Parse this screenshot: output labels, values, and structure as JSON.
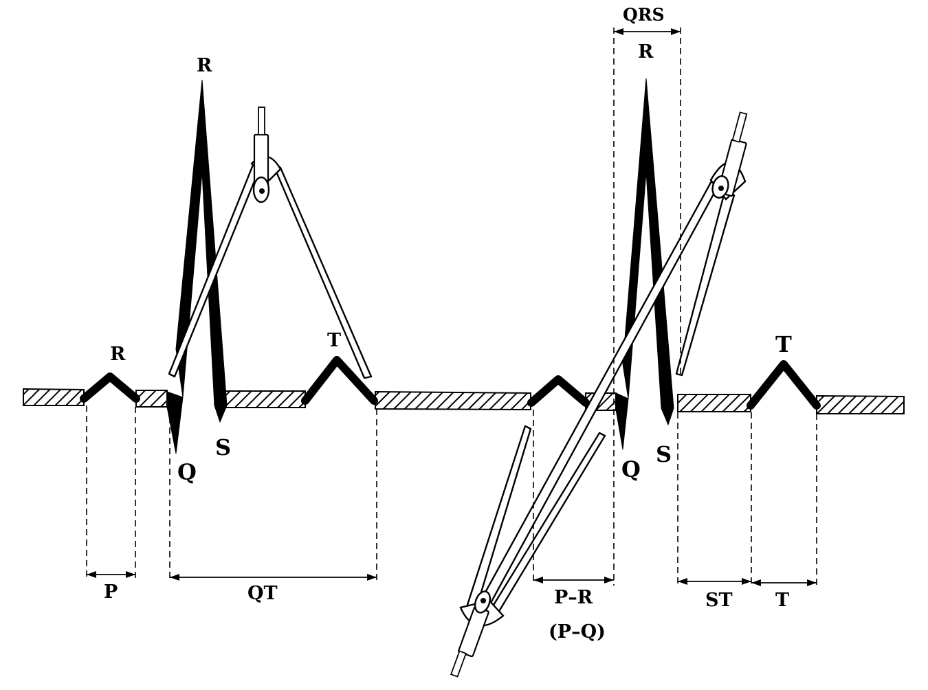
{
  "diagram": {
    "labels": {
      "p_wave_peak": "R",
      "r_peak_1": "R",
      "q_1": "Q",
      "s_1": "S",
      "t_peak_1": "T",
      "qrs_top": "QRS",
      "r_peak_2": "R",
      "q_2": "Q",
      "s_2": "S",
      "t_peak_2": "T"
    },
    "intervals": {
      "p": "P",
      "qt": "QT",
      "pr": "P–R",
      "pr_alt": "(P–Q)",
      "st": "ST",
      "t": "T"
    }
  }
}
